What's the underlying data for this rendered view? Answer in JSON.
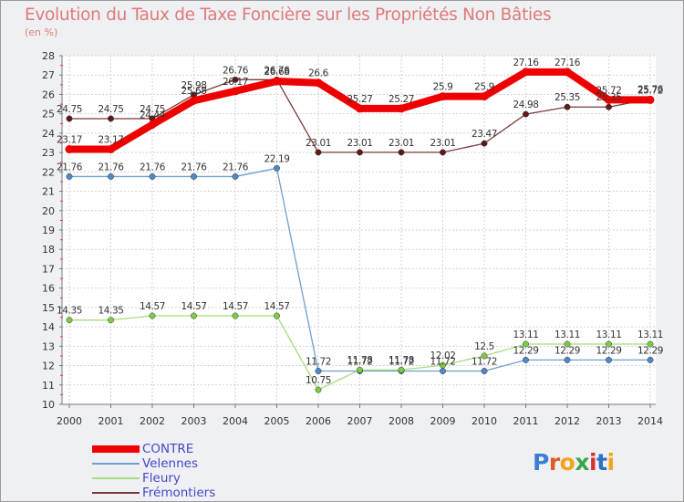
{
  "title": "Evolution du Taux de Taxe Foncière sur les Propriétés Non Bâties",
  "unit": "(en %)",
  "brand": "Proxiti",
  "colors": {
    "title": "#e07a7a",
    "tick": "#333333",
    "legend_text": "#4646c8"
  },
  "chart_data": {
    "type": "line",
    "title": "Evolution du Taux de Taxe Foncière sur les Propriétés Non Bâties",
    "ylabel": "(en %)",
    "xlabel": "",
    "ylim": [
      10,
      28
    ],
    "grid": true,
    "legend": "bottom-left",
    "x": [
      "2000",
      "2001",
      "2002",
      "2003",
      "2004",
      "2005",
      "2006",
      "2007",
      "2008",
      "2009",
      "2010",
      "2011",
      "2012",
      "2013",
      "2014"
    ],
    "y_ticks": [
      "10",
      "11",
      "12",
      "13",
      "14",
      "15",
      "16",
      "17",
      "18",
      "19",
      "20",
      "21",
      "22",
      "23",
      "24",
      "25",
      "26",
      "27",
      "28"
    ],
    "series": [
      {
        "name": "CONTRE",
        "color": "#ee0000",
        "marker": "#ee0000",
        "width": 8,
        "values": [
          23.17,
          23.17,
          24.44,
          25.68,
          26.17,
          26.68,
          26.6,
          25.27,
          25.27,
          25.9,
          25.9,
          27.16,
          27.16,
          25.72,
          25.72
        ],
        "labels": [
          "23.17",
          "23.17",
          "24.44",
          "25.68",
          "26.17",
          "26.68",
          "26.6",
          "25.27",
          "25.27",
          "25.9",
          "25.9",
          "27.16",
          "27.16",
          "25.72",
          "25.72"
        ]
      },
      {
        "name": "Velennes",
        "color": "#6f9ed1",
        "marker": "#4f88c6",
        "width": 1.3,
        "values": [
          21.76,
          21.76,
          21.76,
          21.76,
          21.76,
          22.19,
          11.72,
          11.72,
          11.72,
          11.72,
          11.72,
          12.29,
          12.29,
          12.29,
          12.29
        ],
        "labels": [
          "21.76",
          "21.76",
          "21.76",
          "21.76",
          "21.76",
          "22.19",
          "11.72",
          "11.72",
          "11.72",
          "11.72",
          "11.72",
          "12.29",
          "12.29",
          "12.29",
          "12.29"
        ]
      },
      {
        "name": "Fleury",
        "color": "#a6dc7c",
        "marker": "#7ccc45",
        "width": 1.3,
        "values": [
          14.35,
          14.35,
          14.57,
          14.57,
          14.57,
          14.57,
          10.75,
          11.78,
          11.78,
          12.02,
          12.5,
          13.11,
          13.11,
          13.11,
          13.11
        ],
        "labels": [
          "14.35",
          "14.35",
          "14.57",
          "14.57",
          "14.57",
          "14.57",
          "10.75",
          "11.78",
          "11.78",
          "12.02",
          "12.5",
          "13.11",
          "13.11",
          "13.11",
          "13.11"
        ]
      },
      {
        "name": "Frémontiers",
        "color": "#7a3a3a",
        "marker": "#5e1a1a",
        "width": 1.3,
        "values": [
          24.75,
          24.75,
          24.75,
          25.98,
          26.76,
          26.76,
          23.01,
          23.01,
          23.01,
          23.01,
          23.47,
          24.98,
          25.35,
          25.35,
          25.76
        ],
        "labels": [
          "24.75",
          "24.75",
          "24.75",
          "25.98",
          "26.76",
          "26.76",
          "23.01",
          "23.01",
          "23.01",
          "23.01",
          "23.47",
          "24.98",
          "25.35",
          "25.35",
          "25.76"
        ]
      }
    ]
  }
}
